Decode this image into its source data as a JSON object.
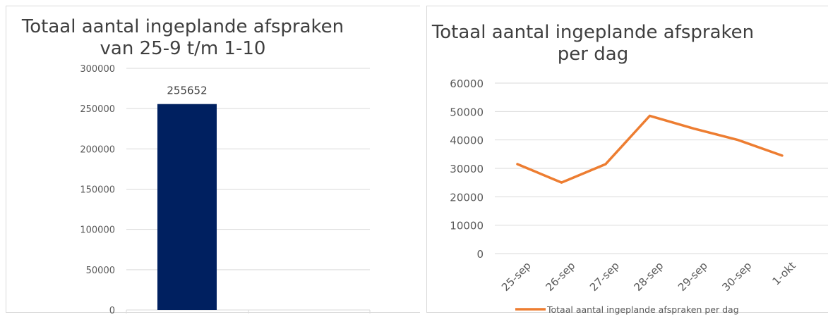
{
  "chart_data": [
    {
      "type": "bar",
      "title": "Totaal aantal ingeplande afspraken van 25-9 t/m 1-10",
      "categories": [
        ""
      ],
      "values": [
        255652
      ],
      "data_labels": [
        "255652"
      ],
      "ylim": [
        0,
        300000
      ],
      "yticks": [
        0,
        50000,
        100000,
        150000,
        200000,
        250000,
        300000
      ],
      "ytick_labels": [
        "0",
        "50000",
        "100000",
        "150000",
        "200000",
        "250000",
        "300000"
      ],
      "grid": true,
      "legend": "none",
      "colors": {
        "bar": "#002060",
        "grid": "#d9d9d9"
      }
    },
    {
      "type": "line",
      "title": "Totaal aantal ingeplande afspraken per dag",
      "categories": [
        "25-sep",
        "26-sep",
        "27-sep",
        "28-sep",
        "29-sep",
        "30-sep",
        "1-okt"
      ],
      "series": [
        {
          "name": "Totaal aantal ingeplande afspraken per dag",
          "values": [
            31500,
            25000,
            31500,
            48500,
            44000,
            40000,
            34500
          ]
        }
      ],
      "ylim": [
        0,
        60000
      ],
      "yticks": [
        0,
        10000,
        20000,
        30000,
        40000,
        50000,
        60000
      ],
      "ytick_labels": [
        "0",
        "10000",
        "20000",
        "30000",
        "40000",
        "50000",
        "60000"
      ],
      "grid": true,
      "legend": "bottom",
      "colors": {
        "line": "#ed7d31",
        "grid": "#d9d9d9"
      }
    }
  ]
}
